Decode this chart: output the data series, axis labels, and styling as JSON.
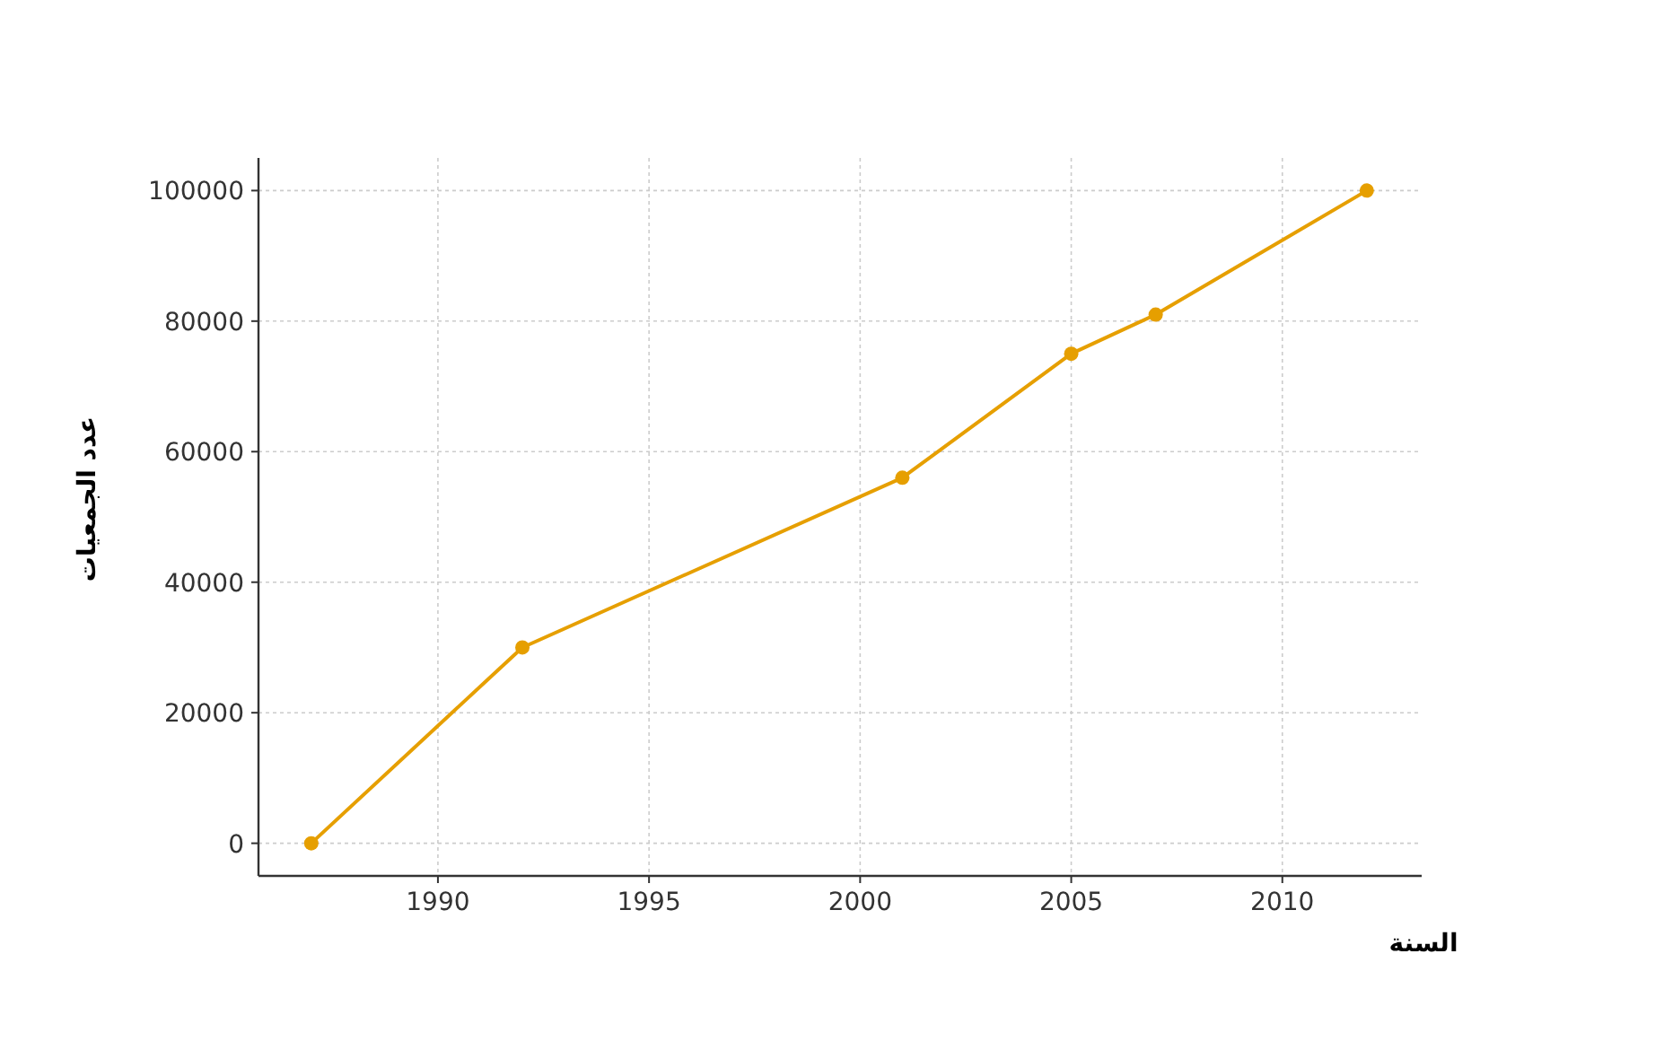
{
  "chart_data": {
    "type": "line",
    "xlabel": "السنة",
    "ylabel": "عدد الجمعيات",
    "x": [
      1987,
      1992,
      2001,
      2005,
      2007,
      2012
    ],
    "series": [
      {
        "color": "#e69f00",
        "values": [
          0,
          30000,
          56000,
          75000,
          81000,
          100000
        ]
      }
    ],
    "xlim": [
      1985.75,
      2013.3
    ],
    "ylim": [
      -5000,
      105000
    ],
    "xticks": [
      1990,
      1995,
      2000,
      2005,
      2010
    ],
    "yticks": [
      0,
      20000,
      40000,
      60000,
      80000,
      100000
    ],
    "grid": true,
    "marker": "circle",
    "line_style": "solid"
  }
}
